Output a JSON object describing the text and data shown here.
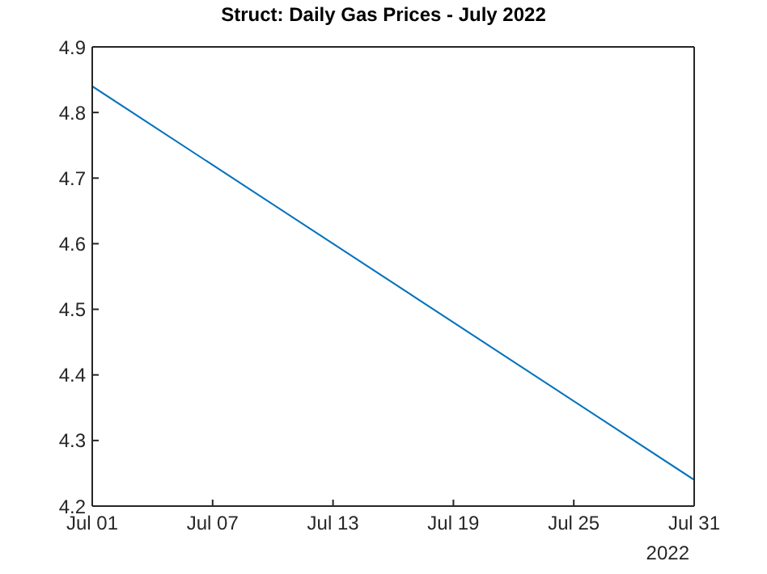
{
  "chart_data": {
    "type": "line",
    "title": "Struct: Daily Gas Prices - July 2022",
    "x": [
      "2022-07-01",
      "2022-07-31"
    ],
    "series": [
      {
        "color": "#0072bd",
        "values": [
          4.84,
          4.24
        ]
      }
    ],
    "xlim": [
      "2022-07-01",
      "2022-07-31"
    ],
    "xticks": [
      {
        "value": "2022-07-01",
        "label": "Jul 01"
      },
      {
        "value": "2022-07-07",
        "label": "Jul 07"
      },
      {
        "value": "2022-07-13",
        "label": "Jul 13"
      },
      {
        "value": "2022-07-19",
        "label": "Jul 19"
      },
      {
        "value": "2022-07-25",
        "label": "Jul 25"
      },
      {
        "value": "2022-07-31",
        "label": "Jul 31"
      }
    ],
    "ylim": [
      4.2,
      4.9
    ],
    "yticks": [
      4.2,
      4.3,
      4.4,
      4.5,
      4.6,
      4.7,
      4.8,
      4.9
    ],
    "grid": false,
    "legend": false,
    "marker": "none",
    "line_style": "solid",
    "annotations": [
      "2022"
    ]
  }
}
